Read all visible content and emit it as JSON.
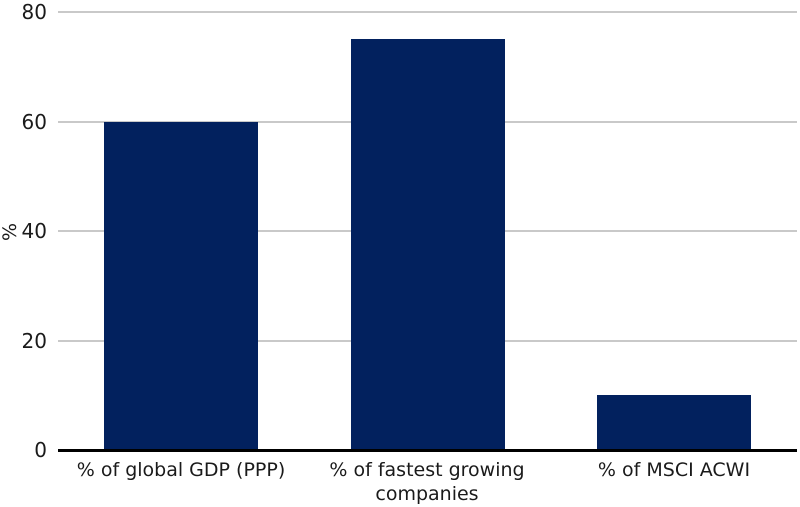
{
  "chart_data": {
    "type": "bar",
    "categories": [
      "% of global GDP (PPP)",
      "% of fastest growing companies",
      "% of MSCI ACWI"
    ],
    "values": [
      60,
      75,
      10
    ],
    "title": "",
    "xlabel": "",
    "ylabel": "%",
    "ylim": [
      0,
      80
    ],
    "yticks": [
      0,
      20,
      40,
      60,
      80
    ],
    "grid": true,
    "legend_position": "none",
    "colors": {
      "bar": "#02215e",
      "gridline": "#c9c9c9",
      "axis": "#000000",
      "text": "#1a1a1a"
    }
  }
}
